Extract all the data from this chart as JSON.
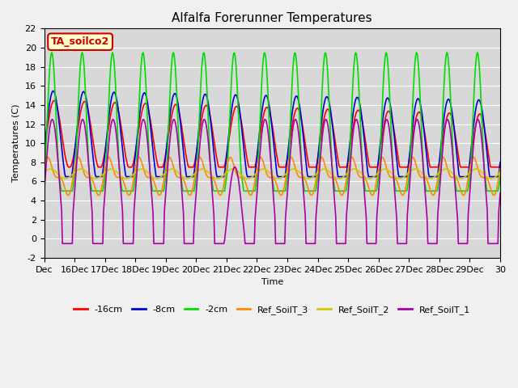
{
  "title": "Alfalfa Forerunner Temperatures",
  "xlabel": "Time",
  "ylabel": "Temperatures (C)",
  "ylim": [
    -2,
    22
  ],
  "xlim": [
    0,
    15
  ],
  "xtick_labels": [
    "Dec",
    "16Dec",
    "17Dec",
    "18Dec",
    "19Dec",
    "20Dec",
    "21Dec",
    "22Dec",
    "23Dec",
    "24Dec",
    "25Dec",
    "26Dec",
    "27Dec",
    "28Dec",
    "29Dec",
    "30"
  ],
  "ytick_vals": [
    -2,
    0,
    2,
    4,
    6,
    8,
    10,
    12,
    14,
    16,
    18,
    20,
    22
  ],
  "legend_labels": [
    "-16cm",
    "-8cm",
    "-2cm",
    "Ref_SoilT_3",
    "Ref_SoilT_2",
    "Ref_SoilT_1"
  ],
  "colors": [
    "#ff0000",
    "#0000dd",
    "#00dd00",
    "#ff8800",
    "#cccc00",
    "#aa00aa"
  ],
  "annotation_text": "TA_soilco2",
  "annotation_color": "#cc0000",
  "annotation_bg": "#ffffcc",
  "background_color": "#d8d8d8",
  "title_fontsize": 11,
  "axis_fontsize": 8,
  "legend_fontsize": 8,
  "grid_color": "#ffffff",
  "line_width": 1.2,
  "fig_width": 6.4,
  "fig_height": 4.8,
  "dpi": 100
}
